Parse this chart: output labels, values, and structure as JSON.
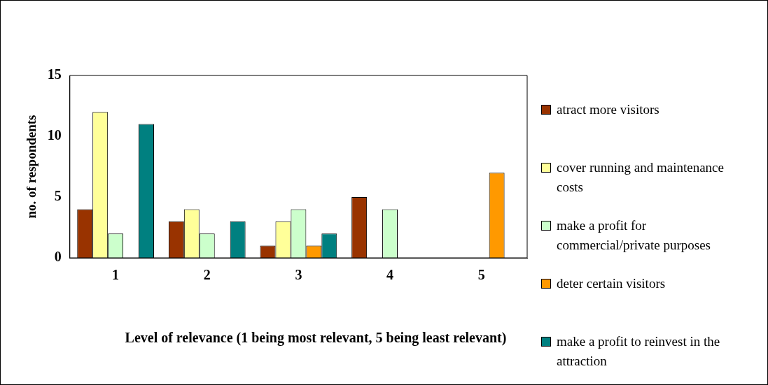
{
  "chart_data": {
    "type": "bar",
    "xlabel": "Level of relevance (1 being most relevant, 5 being least relevant)",
    "ylabel": "no. of respondents",
    "categories": [
      "1",
      "2",
      "3",
      "4",
      "5"
    ],
    "series": [
      {
        "name": "atract more visitors",
        "color": "#993300",
        "values": [
          4,
          3,
          1,
          5,
          0
        ]
      },
      {
        "name": "cover running and maintenance costs",
        "color": "#ffff99",
        "values": [
          12,
          4,
          3,
          0,
          0
        ]
      },
      {
        "name": "make a profit for commercial/private purposes",
        "color": "#ccffcc",
        "values": [
          2,
          2,
          4,
          4,
          0
        ]
      },
      {
        "name": "deter certain visitors",
        "color": "#ff9900",
        "values": [
          0,
          0,
          1,
          0,
          7
        ]
      },
      {
        "name": "make a profit to reinvest in the attraction",
        "color": "#008080",
        "values": [
          11,
          3,
          2,
          0,
          0
        ]
      }
    ],
    "ylim": [
      0,
      15
    ],
    "yticks": [
      0,
      5,
      10,
      15
    ],
    "grid": false,
    "legend": "right"
  }
}
